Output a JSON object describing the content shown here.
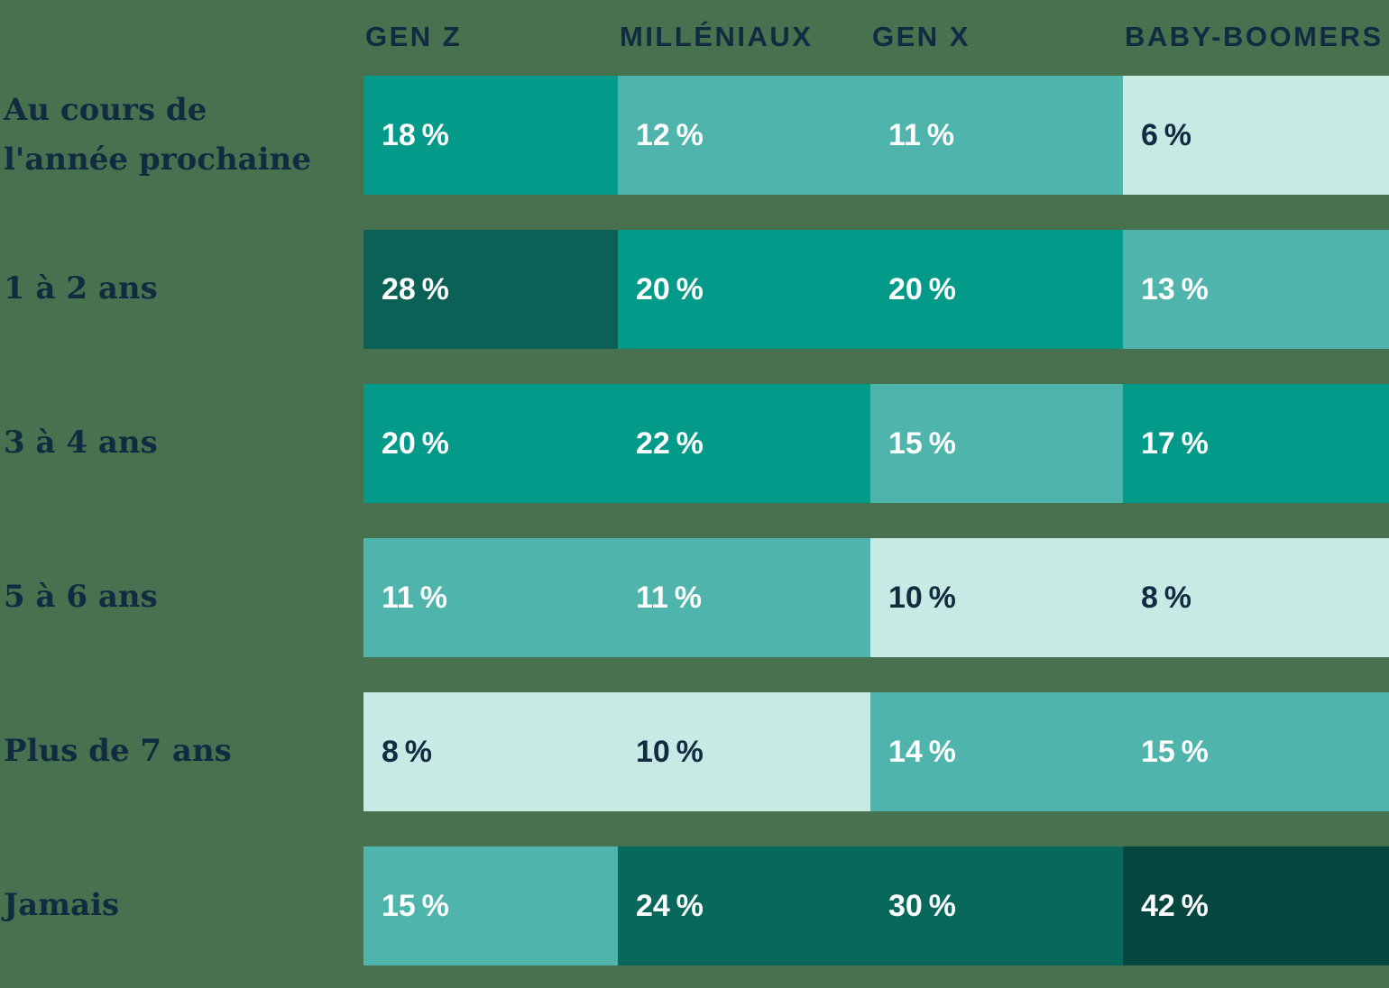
{
  "chart_data": {
    "type": "heatmap",
    "unit": "%",
    "value_suffix": " %",
    "columns": [
      "GEN Z",
      "MILLÉNIAUX",
      "GEN X",
      "BABY-BOOMERS"
    ],
    "row_labels": [
      "Au cours de l'année prochaine",
      "1 à 2 ans",
      "3 à 4 ans",
      "5 à 6 ans",
      "Plus de 7 ans",
      "Jamais"
    ],
    "values": [
      [
        18,
        12,
        11,
        6
      ],
      [
        28,
        20,
        20,
        13
      ],
      [
        20,
        22,
        15,
        17
      ],
      [
        11,
        11,
        10,
        8
      ],
      [
        8,
        10,
        14,
        15
      ],
      [
        15,
        24,
        30,
        42
      ]
    ],
    "cell_colors": [
      [
        "#049A89",
        "#4FB4AC",
        "#4FB4AC",
        "#C8EAE5"
      ],
      [
        "#0B6156",
        "#049A89",
        "#049A89",
        "#4FB4AC"
      ],
      [
        "#049A89",
        "#049A89",
        "#4FB4AC",
        "#049A89"
      ],
      [
        "#4FB4AC",
        "#4FB4AC",
        "#C8EAE5",
        "#C8EAE5"
      ],
      [
        "#C8EAE5",
        "#C8EAE5",
        "#4FB4AC",
        "#4FB4AC"
      ],
      [
        "#4FB4AC",
        "#07685B",
        "#07685B",
        "#05463E"
      ]
    ],
    "legend_position": "none",
    "grid": false
  },
  "colors": {
    "background": "#48714F",
    "heading_text": "#112B40",
    "label_text": "#112B40",
    "value_text_on_dark": "#FFFFFF",
    "value_text_on_light": "#112B40"
  }
}
